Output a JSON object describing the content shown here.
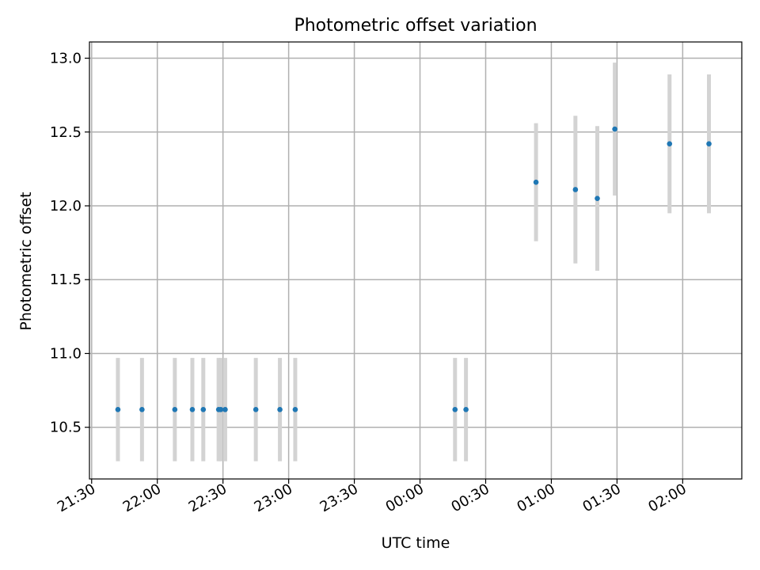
{
  "chart_data": {
    "type": "scatter",
    "title": "Photometric offset variation",
    "xlabel": "UTC time",
    "ylabel": "Photometric offset",
    "grid": true,
    "x_ticks": [
      "21:30",
      "22:00",
      "22:30",
      "23:00",
      "23:30",
      "00:00",
      "00:30",
      "01:00",
      "01:30",
      "02:00"
    ],
    "y_ticks": [
      "10.5",
      "11.0",
      "11.5",
      "12.0",
      "12.5",
      "13.0"
    ],
    "x_tick_minutes": [
      0,
      30,
      60,
      90,
      120,
      150,
      180,
      210,
      240,
      270
    ],
    "xlim_minutes": [
      -1,
      297
    ],
    "ylim": [
      10.15,
      13.11
    ],
    "colors": {
      "point": "#1f77b4",
      "errorbar": "#d3d3d3"
    },
    "points": [
      {
        "t": 12,
        "y": 10.62,
        "err": 0.35
      },
      {
        "t": 23,
        "y": 10.62,
        "err": 0.35
      },
      {
        "t": 38,
        "y": 10.62,
        "err": 0.35
      },
      {
        "t": 46,
        "y": 10.62,
        "err": 0.35
      },
      {
        "t": 51,
        "y": 10.62,
        "err": 0.35
      },
      {
        "t": 58,
        "y": 10.62,
        "err": 0.35
      },
      {
        "t": 59,
        "y": 10.62,
        "err": 0.35
      },
      {
        "t": 61,
        "y": 10.62,
        "err": 0.35
      },
      {
        "t": 75,
        "y": 10.62,
        "err": 0.35
      },
      {
        "t": 86,
        "y": 10.62,
        "err": 0.35
      },
      {
        "t": 93,
        "y": 10.62,
        "err": 0.35
      },
      {
        "t": 166,
        "y": 10.62,
        "err": 0.35
      },
      {
        "t": 171,
        "y": 10.62,
        "err": 0.35
      },
      {
        "t": 203,
        "y": 12.16,
        "err": 0.4
      },
      {
        "t": 221,
        "y": 12.11,
        "err": 0.5
      },
      {
        "t": 231,
        "y": 12.05,
        "err": 0.49
      },
      {
        "t": 239,
        "y": 12.52,
        "err": 0.45
      },
      {
        "t": 264,
        "y": 12.42,
        "err": 0.47
      },
      {
        "t": 282,
        "y": 12.42,
        "err": 0.47
      }
    ]
  }
}
